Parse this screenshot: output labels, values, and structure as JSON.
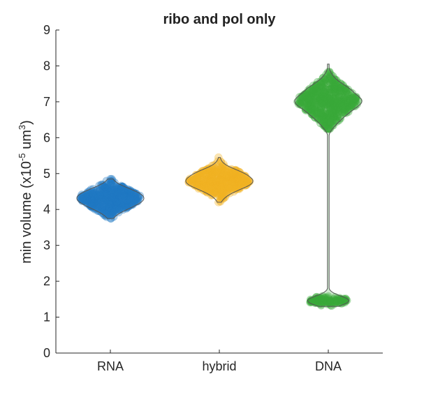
{
  "chart_data": {
    "type": "violin",
    "title": "ribo and pol only",
    "xlabel": "",
    "ylabel_main": "min  volume  (x10",
    "ylabel_exp1": "-5",
    "ylabel_mid": " um",
    "ylabel_exp2": "3",
    "ylabel_end": ")",
    "ylim": [
      0,
      9
    ],
    "yticks": [
      "0",
      "1",
      "2",
      "3",
      "4",
      "5",
      "6",
      "7",
      "8",
      "9"
    ],
    "categories": [
      "RNA",
      "hybrid",
      "DNA"
    ],
    "grid": false,
    "series": [
      {
        "category": "RNA",
        "color": "#1f77c4",
        "clusters": [
          {
            "min": 3.75,
            "max": 4.85,
            "center": 4.3,
            "spread": 0.22,
            "count": 420
          }
        ]
      },
      {
        "category": "hybrid",
        "color": "#f0b323",
        "clusters": [
          {
            "min": 4.2,
            "max": 5.45,
            "center": 4.8,
            "spread": 0.22,
            "count": 380
          }
        ]
      },
      {
        "category": "DNA",
        "color": "#3aa83a",
        "clusters": [
          {
            "min": 6.25,
            "max": 8.05,
            "center": 7.0,
            "spread": 0.35,
            "count": 480
          },
          {
            "min": 1.3,
            "max": 1.6,
            "center": 1.45,
            "spread": 0.06,
            "count": 110
          }
        ]
      }
    ]
  }
}
